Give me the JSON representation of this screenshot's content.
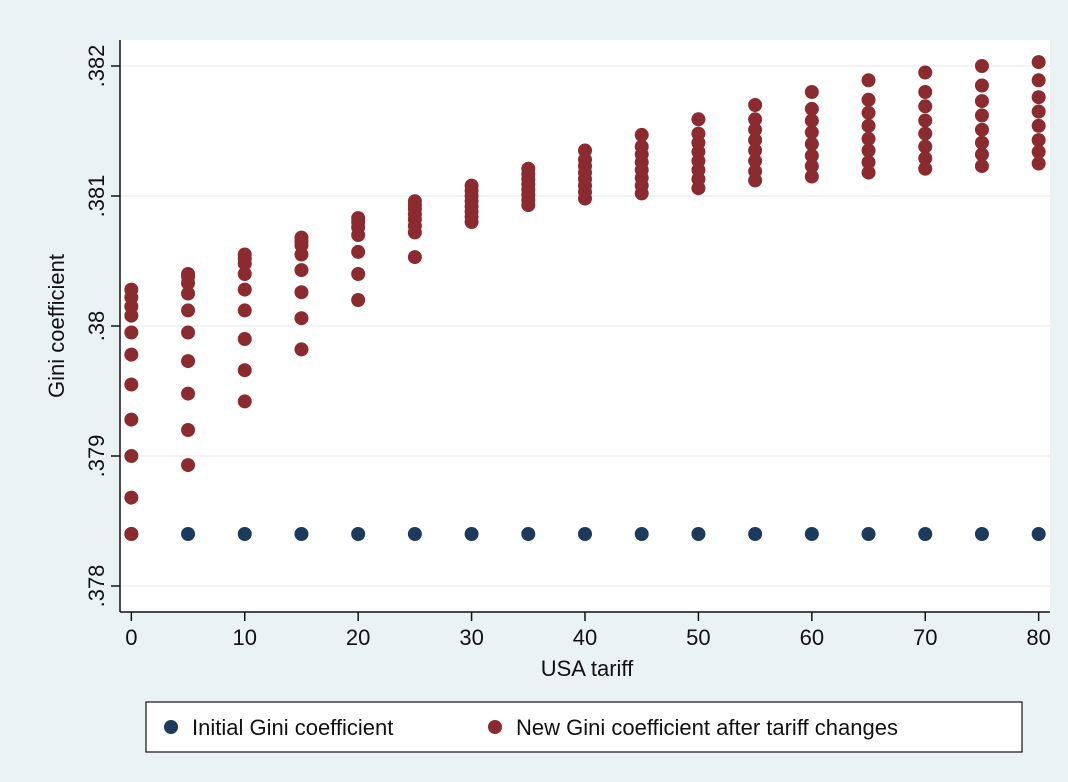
{
  "chart_data": {
    "type": "scatter",
    "title": "",
    "xlabel": "USA tariff",
    "ylabel": "Gini coefficient",
    "xlim": [
      -1,
      81
    ],
    "ylim": [
      0.3778,
      0.3822
    ],
    "x_ticks": [
      0,
      10,
      20,
      30,
      40,
      50,
      60,
      70,
      80
    ],
    "x_tick_labels": [
      "0",
      "10",
      "20",
      "30",
      "40",
      "50",
      "60",
      "70",
      "80"
    ],
    "y_ticks": [
      0.378,
      0.379,
      0.38,
      0.381,
      0.382
    ],
    "y_tick_labels": [
      ".378",
      ".379",
      ".38",
      ".381",
      ".382"
    ],
    "grid": "horizontal",
    "legend_position": "bottom",
    "colors": {
      "initial": "#1b3a5c",
      "new": "#8b2b2f",
      "plot_bg": "#ffffff",
      "page_bg": "#eaf2f3",
      "grid": "#e6eef0"
    },
    "series": [
      {
        "name": "Initial Gini coefficient",
        "points": [
          [
            0,
            0.3784
          ],
          [
            5,
            0.3784
          ],
          [
            10,
            0.3784
          ],
          [
            15,
            0.3784
          ],
          [
            20,
            0.3784
          ],
          [
            25,
            0.3784
          ],
          [
            30,
            0.3784
          ],
          [
            35,
            0.3784
          ],
          [
            40,
            0.3784
          ],
          [
            45,
            0.3784
          ],
          [
            50,
            0.3784
          ],
          [
            55,
            0.3784
          ],
          [
            60,
            0.3784
          ],
          [
            65,
            0.3784
          ],
          [
            70,
            0.3784
          ],
          [
            75,
            0.3784
          ],
          [
            80,
            0.3784
          ]
        ]
      },
      {
        "name": "New Gini coefficient after tariff changes",
        "points": [
          [
            0,
            0.3784
          ],
          [
            0,
            0.37868
          ],
          [
            0,
            0.379
          ],
          [
            0,
            0.37928
          ],
          [
            0,
            0.37955
          ],
          [
            0,
            0.37978
          ],
          [
            0,
            0.37995
          ],
          [
            0,
            0.38008
          ],
          [
            0,
            0.38015
          ],
          [
            0,
            0.38022
          ],
          [
            0,
            0.38028
          ],
          [
            5,
            0.37893
          ],
          [
            5,
            0.3792
          ],
          [
            5,
            0.37948
          ],
          [
            5,
            0.37973
          ],
          [
            5,
            0.37995
          ],
          [
            5,
            0.38012
          ],
          [
            5,
            0.38025
          ],
          [
            5,
            0.38033
          ],
          [
            5,
            0.38038
          ],
          [
            5,
            0.3804
          ],
          [
            10,
            0.37942
          ],
          [
            10,
            0.37966
          ],
          [
            10,
            0.3799
          ],
          [
            10,
            0.38012
          ],
          [
            10,
            0.38028
          ],
          [
            10,
            0.3804
          ],
          [
            10,
            0.38048
          ],
          [
            10,
            0.38052
          ],
          [
            10,
            0.38055
          ],
          [
            15,
            0.37982
          ],
          [
            15,
            0.38006
          ],
          [
            15,
            0.38026
          ],
          [
            15,
            0.38043
          ],
          [
            15,
            0.38055
          ],
          [
            15,
            0.38062
          ],
          [
            15,
            0.38065
          ],
          [
            15,
            0.38068
          ],
          [
            20,
            0.3802
          ],
          [
            20,
            0.3804
          ],
          [
            20,
            0.38057
          ],
          [
            20,
            0.3807
          ],
          [
            20,
            0.38076
          ],
          [
            20,
            0.3808
          ],
          [
            20,
            0.38083
          ],
          [
            25,
            0.38053
          ],
          [
            25,
            0.38072
          ],
          [
            25,
            0.38077
          ],
          [
            25,
            0.38082
          ],
          [
            25,
            0.38086
          ],
          [
            25,
            0.3809
          ],
          [
            25,
            0.38093
          ],
          [
            25,
            0.38096
          ],
          [
            30,
            0.3808
          ],
          [
            30,
            0.38084
          ],
          [
            30,
            0.38088
          ],
          [
            30,
            0.38092
          ],
          [
            30,
            0.38096
          ],
          [
            30,
            0.381
          ],
          [
            30,
            0.38104
          ],
          [
            30,
            0.38108
          ],
          [
            35,
            0.38093
          ],
          [
            35,
            0.38097
          ],
          [
            35,
            0.38101
          ],
          [
            35,
            0.38105
          ],
          [
            35,
            0.38109
          ],
          [
            35,
            0.38113
          ],
          [
            35,
            0.38117
          ],
          [
            35,
            0.38121
          ],
          [
            40,
            0.38098
          ],
          [
            40,
            0.38103
          ],
          [
            40,
            0.38108
          ],
          [
            40,
            0.38113
          ],
          [
            40,
            0.38118
          ],
          [
            40,
            0.38123
          ],
          [
            40,
            0.38128
          ],
          [
            40,
            0.38135
          ],
          [
            45,
            0.38102
          ],
          [
            45,
            0.38108
          ],
          [
            45,
            0.38114
          ],
          [
            45,
            0.3812
          ],
          [
            45,
            0.38126
          ],
          [
            45,
            0.38132
          ],
          [
            45,
            0.38138
          ],
          [
            45,
            0.38147
          ],
          [
            50,
            0.38106
          ],
          [
            50,
            0.38113
          ],
          [
            50,
            0.3812
          ],
          [
            50,
            0.38127
          ],
          [
            50,
            0.38134
          ],
          [
            50,
            0.38141
          ],
          [
            50,
            0.38148
          ],
          [
            50,
            0.38159
          ],
          [
            55,
            0.38112
          ],
          [
            55,
            0.38119
          ],
          [
            55,
            0.38127
          ],
          [
            55,
            0.38135
          ],
          [
            55,
            0.38143
          ],
          [
            55,
            0.38151
          ],
          [
            55,
            0.38159
          ],
          [
            55,
            0.3817
          ],
          [
            60,
            0.38115
          ],
          [
            60,
            0.38123
          ],
          [
            60,
            0.38131
          ],
          [
            60,
            0.3814
          ],
          [
            60,
            0.38149
          ],
          [
            60,
            0.38158
          ],
          [
            60,
            0.38167
          ],
          [
            60,
            0.3818
          ],
          [
            65,
            0.38118
          ],
          [
            65,
            0.38126
          ],
          [
            65,
            0.38135
          ],
          [
            65,
            0.38144
          ],
          [
            65,
            0.38154
          ],
          [
            65,
            0.38164
          ],
          [
            65,
            0.38174
          ],
          [
            65,
            0.38189
          ],
          [
            70,
            0.38121
          ],
          [
            70,
            0.38129
          ],
          [
            70,
            0.38138
          ],
          [
            70,
            0.38148
          ],
          [
            70,
            0.38158
          ],
          [
            70,
            0.38169
          ],
          [
            70,
            0.3818
          ],
          [
            70,
            0.38195
          ],
          [
            75,
            0.38123
          ],
          [
            75,
            0.38132
          ],
          [
            75,
            0.38141
          ],
          [
            75,
            0.38151
          ],
          [
            75,
            0.38162
          ],
          [
            75,
            0.38173
          ],
          [
            75,
            0.38185
          ],
          [
            75,
            0.382
          ],
          [
            80,
            0.38125
          ],
          [
            80,
            0.38134
          ],
          [
            80,
            0.38143
          ],
          [
            80,
            0.38154
          ],
          [
            80,
            0.38165
          ],
          [
            80,
            0.38176
          ],
          [
            80,
            0.38189
          ],
          [
            80,
            0.38203
          ]
        ]
      }
    ]
  }
}
